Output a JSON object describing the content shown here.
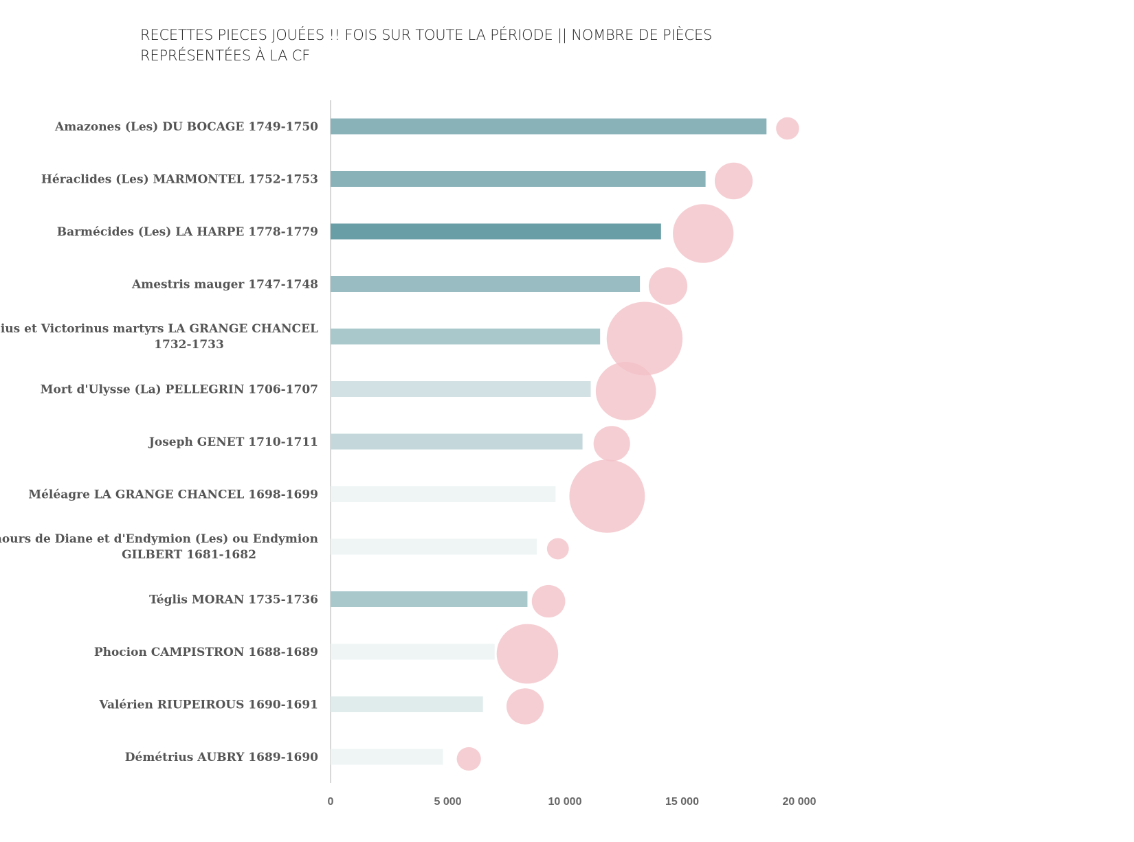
{
  "chart_data": {
    "type": "bar",
    "orientation": "horizontal",
    "title": "RECETTES PIECES JOUÉES !! FOIS SUR TOUTE LA PÉRIODE || NOMBRE DE PIÈCES REPRÉSENTÉES À LA CF",
    "xlabel": "",
    "ylabel": "",
    "xlim": [
      0,
      20000
    ],
    "x_ticks": [
      "0",
      "5 000",
      "10 000",
      "15 000",
      "20 000"
    ],
    "grid": false,
    "legend": "none",
    "categories": [
      [
        "Amazones (Les) DU BOCAGE 1749-1750"
      ],
      [
        "Héraclides (Les) MARMONTEL 1752-1753"
      ],
      [
        "Barmécides (Les) LA HARPE 1778-1779"
      ],
      [
        "Amestris mauger 1747-1748"
      ],
      [
        "Cassius et Victorinus martyrs LA GRANGE CHANCEL",
        "1732-1733"
      ],
      [
        "Mort d'Ulysse (La) PELLEGRIN 1706-1707"
      ],
      [
        "Joseph GENET 1710-1711"
      ],
      [
        "Méléagre LA GRANGE CHANCEL 1698-1699"
      ],
      [
        "Amours de Diane et d'Endymion (Les) ou Endymion",
        "GILBERT 1681-1682"
      ],
      [
        "Téglis MORAN 1735-1736"
      ],
      [
        "Phocion CAMPISTRON 1688-1689"
      ],
      [
        "Valérien RIUPEIROUS 1690-1691"
      ],
      [
        "Démétrius AUBRY 1689-1690"
      ]
    ],
    "values": [
      18600,
      16000,
      14100,
      13200,
      11500,
      11100,
      10750,
      9600,
      8800,
      8400,
      7000,
      6500,
      4800
    ],
    "bar_colors": [
      "#88b1b8",
      "#88b1b8",
      "#699ea6",
      "#98bcc1",
      "#a8c8cc",
      "#d2e1e4",
      "#c4d8db",
      "#eff5f5",
      "#eff5f5",
      "#a8c8cc",
      "#eff5f5",
      "#e0ecec",
      "#eff5f5"
    ],
    "bubbles": {
      "color": "#f2c2c8",
      "x": [
        19500,
        17200,
        15900,
        14400,
        13400,
        12600,
        12000,
        11800,
        9700,
        9300,
        8400,
        8300,
        5900
      ],
      "size": [
        1.0,
        2.7,
        6.9,
        2.8,
        10.8,
        6.8,
        2.5,
        10.7,
        0.9,
        2.1,
        7.1,
        2.6,
        1.1
      ]
    }
  }
}
